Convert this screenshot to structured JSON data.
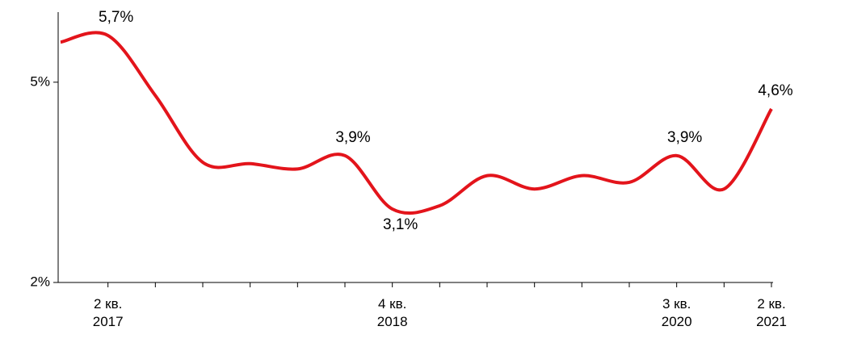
{
  "chart_data": {
    "type": "line",
    "categories": [
      null,
      "2 кв.\n2017",
      null,
      null,
      null,
      null,
      null,
      "4 кв.\n2018",
      null,
      null,
      null,
      null,
      null,
      "3 кв.\n2020",
      null,
      "2 кв.\n2021"
    ],
    "series": [
      {
        "color": "#e3141b",
        "values": [
          5.6,
          5.7,
          4.8,
          3.8,
          3.78,
          3.7,
          3.9,
          3.1,
          3.15,
          3.6,
          3.4,
          3.6,
          3.5,
          3.9,
          3.4,
          4.6
        ],
        "value_labels": [
          null,
          "5,7%",
          null,
          null,
          null,
          null,
          "3,9%",
          "3,1%",
          null,
          null,
          null,
          null,
          null,
          "3,9%",
          null,
          "4,6%"
        ]
      }
    ],
    "ylim": [
      2,
      6.05
    ],
    "yticks": [
      {
        "value": 2,
        "label": "2%"
      },
      {
        "value": 5,
        "label": "5%"
      }
    ]
  }
}
